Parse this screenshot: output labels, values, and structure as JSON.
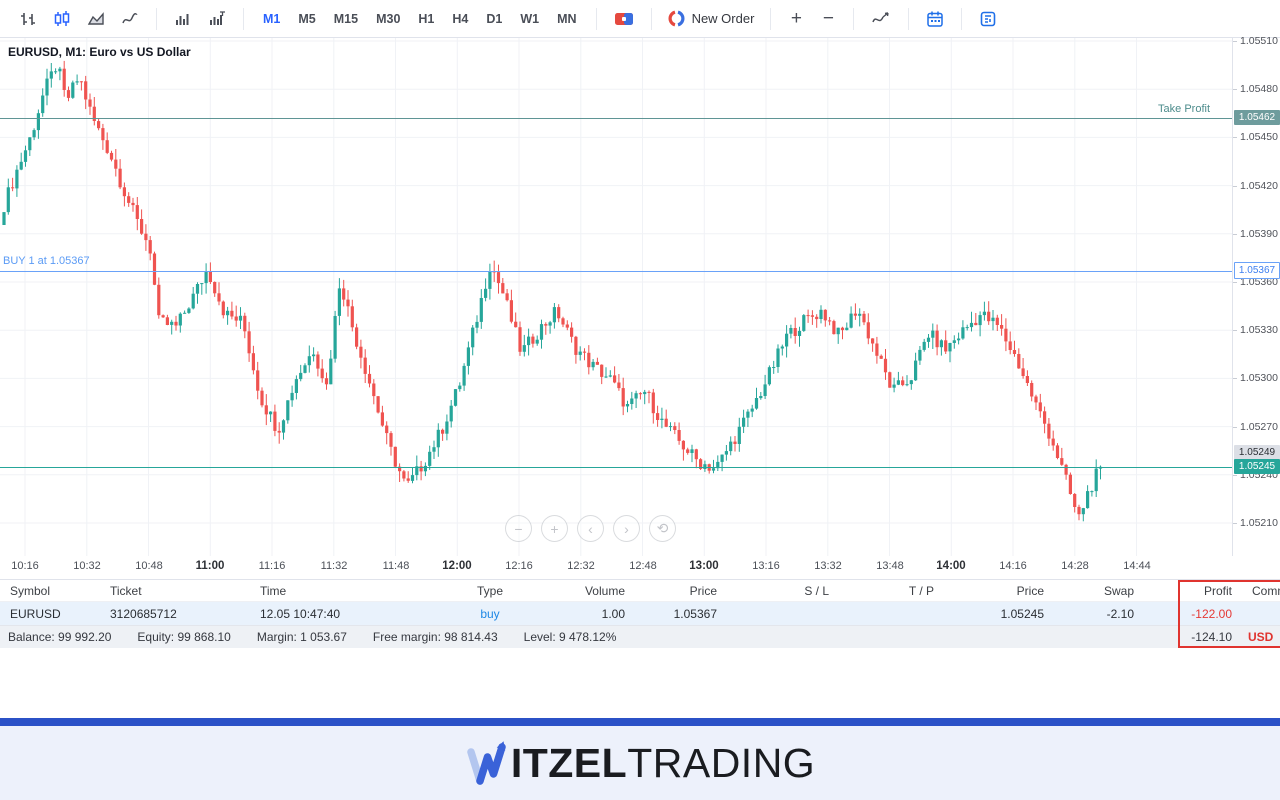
{
  "toolbar": {
    "new_order_label": "New Order",
    "zoom_in": "+",
    "zoom_out": "−",
    "timeframes": [
      {
        "label": "M1",
        "active": true
      },
      {
        "label": "M5",
        "active": false
      },
      {
        "label": "M15",
        "active": false
      },
      {
        "label": "M30",
        "active": false
      },
      {
        "label": "H1",
        "active": false
      },
      {
        "label": "H4",
        "active": false
      },
      {
        "label": "D1",
        "active": false
      },
      {
        "label": "W1",
        "active": false
      },
      {
        "label": "MN",
        "active": false
      }
    ]
  },
  "chart": {
    "title": "EURUSD, M1: Euro vs US Dollar",
    "nav_controls": [
      "−",
      "+",
      "‹",
      "›",
      "⟲"
    ]
  },
  "chart_data": {
    "type": "candlestick",
    "symbol": "EURUSD",
    "timeframe": "M1",
    "title": "EURUSD, M1: Euro vs US Dollar",
    "y_ticks": [
      "1.05510",
      "1.05480",
      "1.05450",
      "1.05420",
      "1.05390",
      "1.05360",
      "1.05330",
      "1.05300",
      "1.05270",
      "1.05240",
      "1.05210"
    ],
    "y_range": [
      1.0521,
      1.0551
    ],
    "x_ticks": [
      {
        "label": "10:16",
        "bold": false
      },
      {
        "label": "10:32",
        "bold": false
      },
      {
        "label": "10:48",
        "bold": false
      },
      {
        "label": "11:00",
        "bold": true
      },
      {
        "label": "11:16",
        "bold": false
      },
      {
        "label": "11:32",
        "bold": false
      },
      {
        "label": "11:48",
        "bold": false
      },
      {
        "label": "12:00",
        "bold": true
      },
      {
        "label": "12:16",
        "bold": false
      },
      {
        "label": "12:32",
        "bold": false
      },
      {
        "label": "12:48",
        "bold": false
      },
      {
        "label": "13:00",
        "bold": true
      },
      {
        "label": "13:16",
        "bold": false
      },
      {
        "label": "13:32",
        "bold": false
      },
      {
        "label": "13:48",
        "bold": false
      },
      {
        "label": "14:00",
        "bold": true
      },
      {
        "label": "14:16",
        "bold": false
      },
      {
        "label": "14:28",
        "bold": false
      },
      {
        "label": "14:44",
        "bold": false
      }
    ],
    "price_lines": {
      "take_profit": {
        "label": "Take Profit",
        "price": "1.05462"
      },
      "buy": {
        "label": "BUY 1 at 1.05367",
        "price": "1.05367"
      },
      "bid": {
        "price": "1.05245"
      },
      "ask": {
        "price": "1.05249"
      }
    },
    "colors": {
      "up": "#26a69a",
      "down": "#ef5350",
      "tp_line": "#5f9595",
      "buy_line": "#6aa2f8",
      "bid_line": "#26a69a"
    },
    "waypoints_min_price": [
      [
        0,
        1.05408
      ],
      [
        3,
        1.0543
      ],
      [
        6,
        1.0545
      ],
      [
        9,
        1.05478
      ],
      [
        12,
        1.05496
      ],
      [
        14,
        1.05472
      ],
      [
        17,
        1.05488
      ],
      [
        20,
        1.05462
      ],
      [
        24,
        1.0544
      ],
      [
        27,
        1.05418
      ],
      [
        30,
        1.05398
      ],
      [
        33,
        1.05382
      ],
      [
        35,
        1.05335
      ],
      [
        39,
        1.05332
      ],
      [
        43,
        1.05352
      ],
      [
        46,
        1.05368
      ],
      [
        50,
        1.0534
      ],
      [
        54,
        1.05335
      ],
      [
        58,
        1.05288
      ],
      [
        62,
        1.05268
      ],
      [
        66,
        1.053
      ],
      [
        70,
        1.05318
      ],
      [
        73,
        1.05295
      ],
      [
        76,
        1.05362
      ],
      [
        79,
        1.0533
      ],
      [
        83,
        1.05295
      ],
      [
        87,
        1.05258
      ],
      [
        91,
        1.05232
      ],
      [
        95,
        1.05248
      ],
      [
        99,
        1.05268
      ],
      [
        103,
        1.05296
      ],
      [
        107,
        1.05338
      ],
      [
        110,
        1.05372
      ],
      [
        113,
        1.05352
      ],
      [
        117,
        1.05316
      ],
      [
        121,
        1.0533
      ],
      [
        125,
        1.05342
      ],
      [
        129,
        1.0532
      ],
      [
        133,
        1.05308
      ],
      [
        137,
        1.053
      ],
      [
        141,
        1.05282
      ],
      [
        145,
        1.05292
      ],
      [
        149,
        1.05272
      ],
      [
        153,
        1.0526
      ],
      [
        157,
        1.05248
      ],
      [
        161,
        1.05244
      ],
      [
        165,
        1.05262
      ],
      [
        169,
        1.0528
      ],
      [
        173,
        1.05302
      ],
      [
        177,
        1.05326
      ],
      [
        181,
        1.05336
      ],
      [
        185,
        1.05342
      ],
      [
        189,
        1.05326
      ],
      [
        193,
        1.05344
      ],
      [
        197,
        1.05318
      ],
      [
        201,
        1.05292
      ],
      [
        205,
        1.053
      ],
      [
        209,
        1.05328
      ],
      [
        213,
        1.05318
      ],
      [
        217,
        1.0533
      ],
      [
        221,
        1.0534
      ],
      [
        225,
        1.05332
      ],
      [
        229,
        1.05312
      ],
      [
        233,
        1.05286
      ],
      [
        237,
        1.05262
      ],
      [
        240,
        1.05238
      ],
      [
        243,
        1.05212
      ],
      [
        245,
        1.05228
      ],
      [
        248,
        1.05245
      ]
    ]
  },
  "table": {
    "headers": [
      "Symbol",
      "Ticket",
      "Time",
      "Type",
      "Volume",
      "Price",
      "S / L",
      "T / P",
      "Price",
      "Swap",
      "Profit",
      "Comm"
    ],
    "position": [
      "EURUSD",
      "3120685712",
      "12.05 10:47:40",
      "buy",
      "1.00",
      "1.05367",
      "",
      "",
      "1.05245",
      "-2.10",
      "-122.00",
      ""
    ],
    "summary": {
      "items": [
        "Balance: 99 992.20",
        "Equity: 99 868.10",
        "Margin: 1 053.67",
        "Free margin: 98 814.43",
        "Level: 9 478.12%"
      ],
      "profit_total": "-124.10",
      "currency": "USD"
    }
  },
  "footer": {
    "brand_bold": "ITZEL",
    "brand_light": "TRADING"
  }
}
